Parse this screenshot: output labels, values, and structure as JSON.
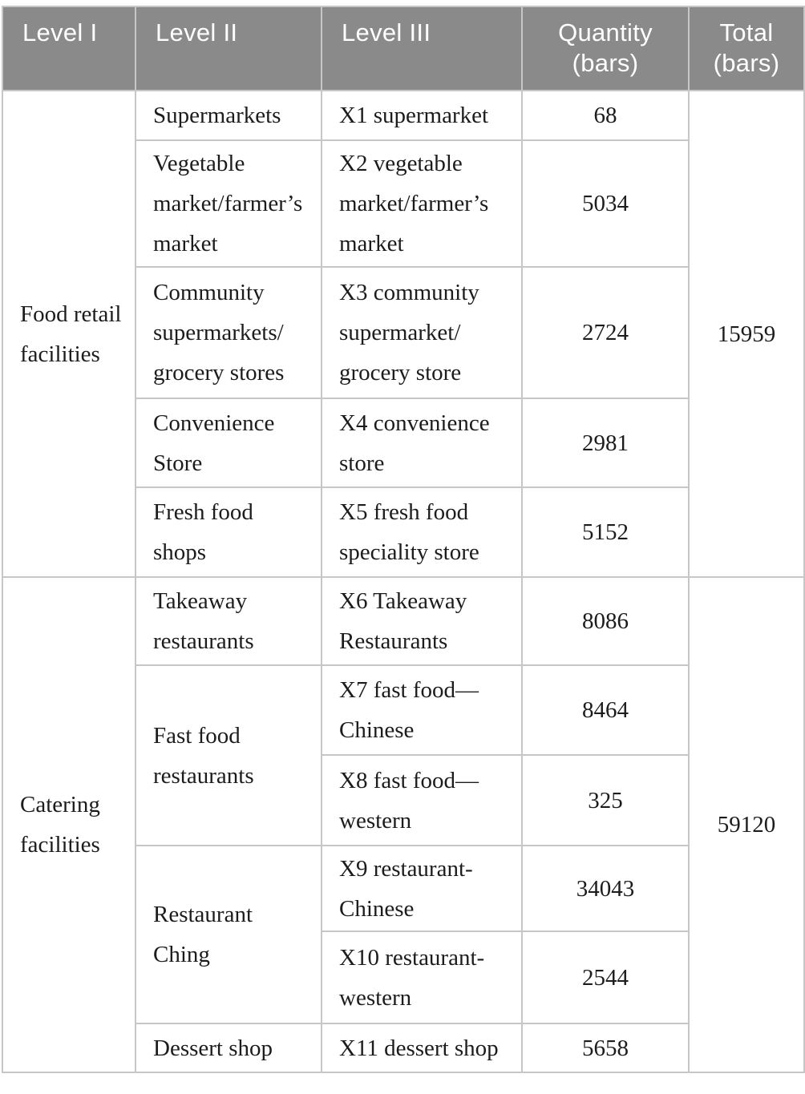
{
  "header": {
    "level1": "Level I",
    "level2": "Level II",
    "level3": "Level III",
    "quantity": [
      "Quantity",
      "(bars)"
    ],
    "total": [
      "Total",
      "(bars)"
    ]
  },
  "colors": {
    "header_bg": "#8a8a8a",
    "header_text": "#ffffff",
    "grid_line": "#c6c6c6",
    "body_text": "#1c1c1c"
  },
  "groups": [
    {
      "level1": [
        "Food retail",
        "facilities"
      ],
      "total": "15959",
      "rows": [
        {
          "level2": "Supermarkets",
          "level3": "X1 supermarket",
          "quantity": "68"
        },
        {
          "level2": [
            "Vegetable",
            "market/farmer’s",
            "market"
          ],
          "level3": [
            "X2 vegetable",
            "market/farmer’s",
            "market"
          ],
          "quantity": "5034"
        },
        {
          "level2": [
            "Community",
            "supermarkets/",
            "grocery stores"
          ],
          "level3": [
            "X3 community",
            "supermarket/",
            "grocery store"
          ],
          "quantity": "2724"
        },
        {
          "level2": [
            "Convenience",
            "Store"
          ],
          "level3": [
            "X4 convenience",
            "store"
          ],
          "quantity": "2981"
        },
        {
          "level2": [
            "Fresh food",
            "shops"
          ],
          "level3": [
            "X5 fresh food",
            "speciality store"
          ],
          "quantity": "5152"
        }
      ]
    },
    {
      "level1": [
        "Catering",
        "facilities"
      ],
      "total": "59120",
      "rows": [
        {
          "level2": [
            "Takeaway",
            "restaurants"
          ],
          "level3": [
            "X6 Takeaway",
            "Restaurants"
          ],
          "quantity": "8086"
        },
        {
          "level2": [
            "Fast food",
            "restaurants"
          ],
          "level3": [
            "X7 fast food—",
            "Chinese"
          ],
          "quantity": "8464"
        },
        {
          "level3": [
            "X8 fast food—",
            "western"
          ],
          "quantity": "325"
        },
        {
          "level2": [
            "Restaurant",
            "Ching"
          ],
          "level3": [
            "X9 restaurant-",
            "Chinese"
          ],
          "quantity": "34043"
        },
        {
          "level3": [
            "X10 restaurant-",
            "western"
          ],
          "quantity": "2544"
        },
        {
          "level2": "Dessert shop",
          "level3": "X11 dessert shop",
          "quantity": "5658"
        }
      ]
    }
  ]
}
